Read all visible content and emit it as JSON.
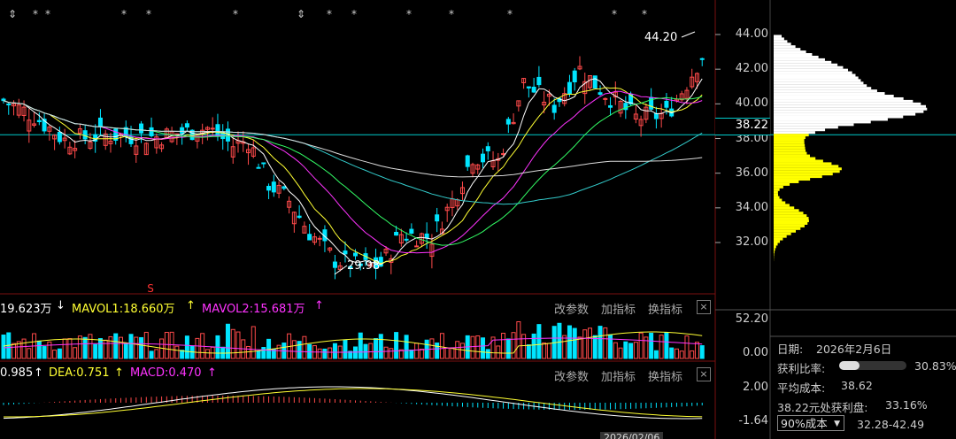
{
  "price_axis": [
    "44.00",
    "42.00",
    "40.00",
    "38.00",
    "36.00",
    "34.00",
    "32.00"
  ],
  "current_price_tag": "38.22",
  "annotations": {
    "high": "44.20",
    "low": "29.98"
  },
  "volume_panel": {
    "vol_label": "19.623万",
    "vol_arrow": "↓",
    "mavol1": "MAVOL1:18.660万",
    "mavol1_arrow": "↑",
    "mavol2": "MAVOL2:15.681万",
    "mavol2_arrow": "↑",
    "axis_top": "52.20",
    "axis_bottom": "0.00",
    "buttons": [
      "改参数",
      "加指标",
      "换指标"
    ],
    "close": "×"
  },
  "macd_panel": {
    "dif": "0.985",
    "dif_arrow": "↑",
    "dea": "DEA:0.751",
    "dea_arrow": "↑",
    "macd": "MACD:0.470",
    "macd_arrow": "↑",
    "axis_top": "2.00",
    "axis_bottom": "-1.64",
    "buttons": [
      "改参数",
      "加指标",
      "换指标"
    ],
    "close": "×"
  },
  "cost_panel": {
    "date_label": "日期:",
    "date_value": "2026年2月6日",
    "profit_label": "获利比率:",
    "profit_value": "30.83%",
    "profit_fraction": 0.3083,
    "avg_cost_label": "平均成本:",
    "avg_cost_value": "38.62",
    "profit_at_price": "38.22元处获利盘:",
    "profit_at_price_value": "33.16%",
    "cost_select": "90%成本",
    "cost_range": "32.28-42.49"
  },
  "bottom_label": "2026/02/06",
  "colors": {
    "up": "#ff4a4a",
    "down": "#00e5ff",
    "ma_white": "#ffffff",
    "ma_yellow": "#ffff33",
    "ma_magenta": "#ff33ff",
    "ma_green": "#33ff66",
    "ma_cyan": "#33cccc",
    "chip_white": "#ffffff",
    "chip_yellow": "#ffff00"
  }
}
